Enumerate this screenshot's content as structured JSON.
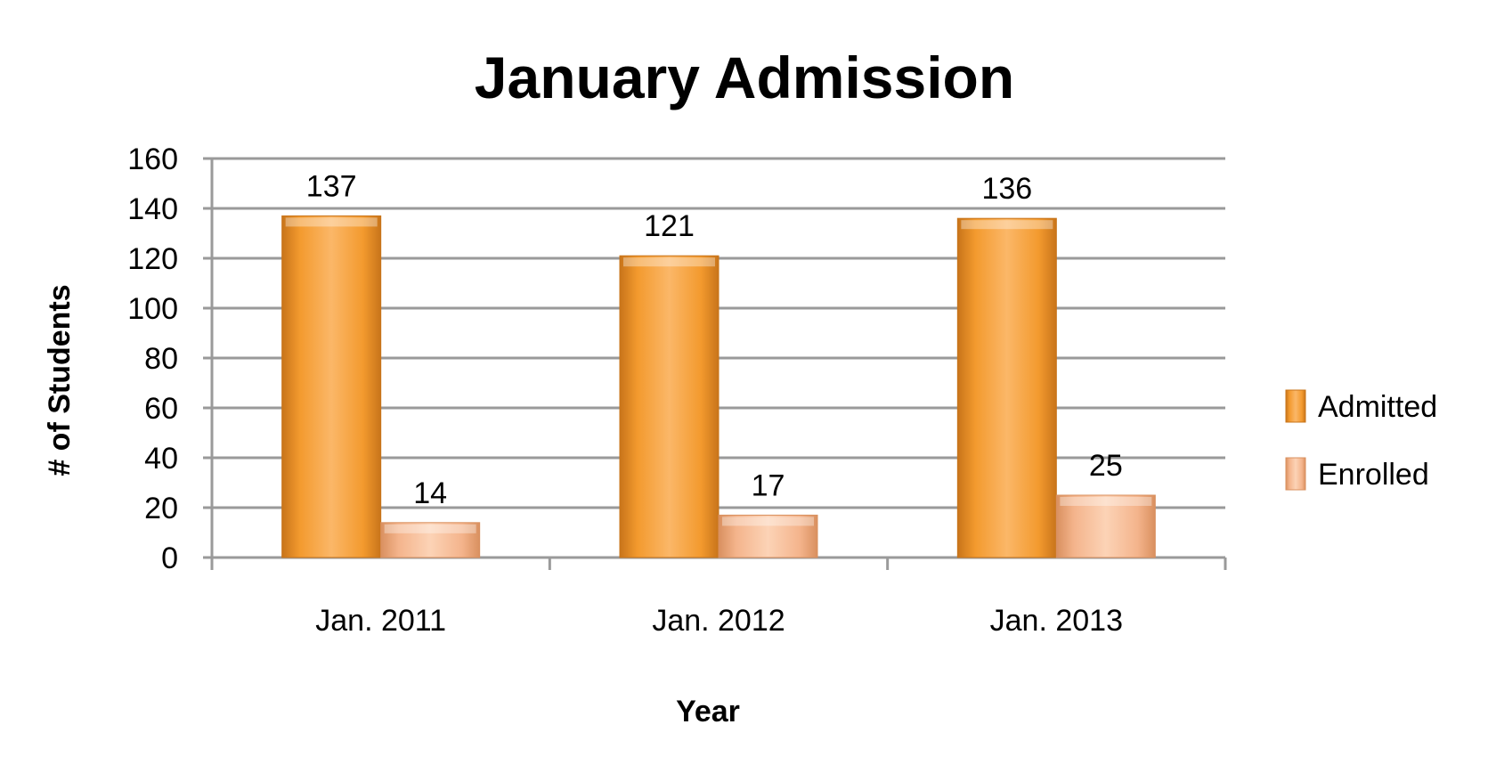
{
  "chart_data": {
    "type": "bar",
    "title": "January Admission",
    "xlabel": "Year",
    "ylabel": "# of Students",
    "categories": [
      "Jan. 2011",
      "Jan. 2012",
      "Jan. 2013"
    ],
    "series": [
      {
        "name": "Admitted",
        "values": [
          137,
          121,
          136
        ],
        "color": "#F39A2E",
        "color_light": "#FBB768",
        "color_dark": "#C8741A"
      },
      {
        "name": "Enrolled",
        "values": [
          14,
          17,
          25
        ],
        "color": "#F4B48C",
        "color_light": "#FCD3B6",
        "color_dark": "#D9905F"
      }
    ],
    "ylim": [
      0,
      160
    ],
    "yticks": [
      "0",
      "20",
      "40",
      "60",
      "80",
      "100",
      "120",
      "140",
      "160"
    ],
    "data_labels": [
      [
        "137",
        "121",
        "136"
      ],
      [
        "14",
        "17",
        "25"
      ]
    ],
    "grid": true,
    "grid_color": "#9A9A9A",
    "legend_position": "right"
  }
}
